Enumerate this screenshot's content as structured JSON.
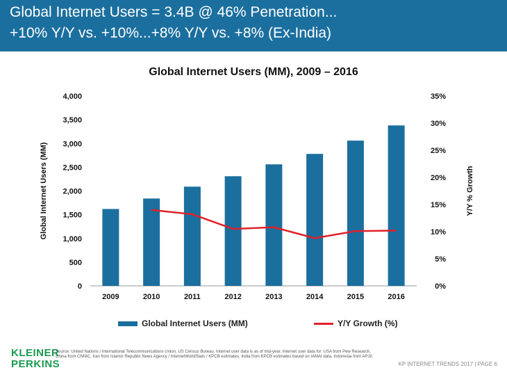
{
  "header": {
    "line1": "Global Internet Users = 3.4B @ 46% Penetration...",
    "line2": "+10% Y/Y vs. +10%...+8% Y/Y vs. +8% (Ex-India)"
  },
  "colors": {
    "header_bg": "#1b6f9e",
    "bar": "#1b6f9e",
    "line": "#e0202a",
    "logo": "#1a9a50"
  },
  "chart_data": {
    "type": "bar",
    "title": "Global Internet Users (MM), 2009 – 2016",
    "categories": [
      "2009",
      "2010",
      "2011",
      "2012",
      "2013",
      "2014",
      "2015",
      "2016"
    ],
    "series": [
      {
        "name": "Global Internet Users (MM)",
        "type": "bar",
        "axis": "left",
        "values": [
          1620,
          1840,
          2090,
          2310,
          2560,
          2780,
          3060,
          3380
        ]
      },
      {
        "name": "Y/Y Growth (%)",
        "type": "line",
        "axis": "right",
        "values": [
          null,
          14,
          13.2,
          10.5,
          10.8,
          8.8,
          10.1,
          10.2
        ]
      }
    ],
    "ylabel": "Global Internet Users (MM)",
    "y2label": "Y/Y % Growth",
    "ylim": [
      0,
      4000
    ],
    "y2lim": [
      0,
      35
    ],
    "yticks": [
      "0",
      "500",
      "1,000",
      "1,500",
      "2,000",
      "2,500",
      "3,000",
      "3,500",
      "4,000"
    ],
    "y2ticks": [
      "0%",
      "5%",
      "10%",
      "15%",
      "20%",
      "25%",
      "30%",
      "35%"
    ],
    "legend": "bottom",
    "grid": false
  },
  "footer": {
    "logo_line1": "KLEINER",
    "logo_line2": "PERKINS",
    "source": "Source: United Nations / International Telecommunications Union, US Census Bureau. Internet user data is as of mid-year. Internet user data for: USA from Pew Research, China from CNNIC, Iran from Islamic Republic News Agency / InternetWorldStats / KPCB estimates, India from KPCB estimates based on IAMAI data, Indonesia from APJII.",
    "page_label": "KP INTERNET TRENDS 2017  |  PAGE 6"
  }
}
